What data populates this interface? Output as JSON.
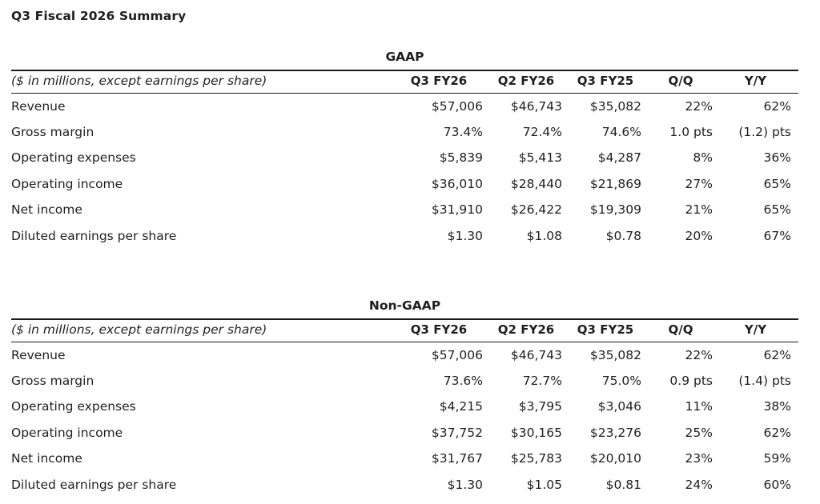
{
  "page_title": "Q3 Fiscal 2026 Summary",
  "units_note": "($ in millions, except earnings per share)",
  "columns": [
    "Q3 FY26",
    "Q2 FY26",
    "Q3 FY25",
    "Q/Q",
    "Y/Y"
  ],
  "colors": {
    "text": "#1f1f1f",
    "rule": "#1a1a1a",
    "background": "#ffffff"
  },
  "tables": [
    {
      "title": "GAAP",
      "rows": [
        {
          "label": "Revenue",
          "values": [
            "$57,006",
            "$46,743",
            "$35,082",
            "22%",
            "62%"
          ]
        },
        {
          "label": "Gross margin",
          "values": [
            "73.4%",
            "72.4%",
            "74.6%",
            "1.0 pts",
            "(1.2) pts"
          ]
        },
        {
          "label": "Operating expenses",
          "values": [
            "$5,839",
            "$5,413",
            "$4,287",
            "8%",
            "36%"
          ]
        },
        {
          "label": "Operating income",
          "values": [
            "$36,010",
            "$28,440",
            "$21,869",
            "27%",
            "65%"
          ]
        },
        {
          "label": "Net income",
          "values": [
            "$31,910",
            "$26,422",
            "$19,309",
            "21%",
            "65%"
          ]
        },
        {
          "label": "Diluted earnings per share",
          "values": [
            "$1.30",
            "$1.08",
            "$0.78",
            "20%",
            "67%"
          ]
        }
      ]
    },
    {
      "title": "Non-GAAP",
      "rows": [
        {
          "label": "Revenue",
          "values": [
            "$57,006",
            "$46,743",
            "$35,082",
            "22%",
            "62%"
          ]
        },
        {
          "label": "Gross margin",
          "values": [
            "73.6%",
            "72.7%",
            "75.0%",
            "0.9 pts",
            "(1.4) pts"
          ]
        },
        {
          "label": "Operating expenses",
          "values": [
            "$4,215",
            "$3,795",
            "$3,046",
            "11%",
            "38%"
          ]
        },
        {
          "label": "Operating income",
          "values": [
            "$37,752",
            "$30,165",
            "$23,276",
            "25%",
            "62%"
          ]
        },
        {
          "label": "Net income",
          "values": [
            "$31,767",
            "$25,783",
            "$20,010",
            "23%",
            "59%"
          ]
        },
        {
          "label": "Diluted earnings per share",
          "values": [
            "$1.30",
            "$1.05",
            "$0.81",
            "24%",
            "60%"
          ]
        }
      ]
    }
  ]
}
